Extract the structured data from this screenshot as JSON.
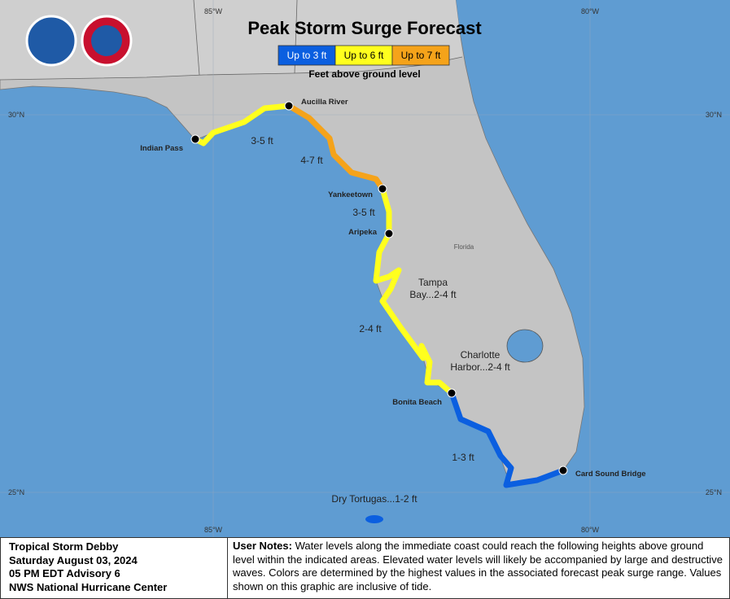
{
  "header": {
    "title": "Peak Storm Surge Forecast",
    "legend": [
      {
        "label": "Up to 3 ft",
        "color": "#0b5fe0"
      },
      {
        "label": "Up to 6 ft",
        "color": "#ffff1e"
      },
      {
        "label": "Up to 7 ft",
        "color": "#f5a31a"
      }
    ],
    "legend_caption": "Feet above ground level"
  },
  "map": {
    "longitudes": [
      "85°W",
      "80°W"
    ],
    "latitudes": [
      "30°N",
      "25°N"
    ],
    "state_label": "Florida",
    "locations": [
      "Aucilla River",
      "Indian Pass",
      "Yankeetown",
      "Aripeka",
      "Bonita Beach",
      "Card Sound Bridge"
    ],
    "surge_labels": [
      [
        "3-5 ft"
      ],
      [
        "4-7 ft"
      ],
      [
        "3-5 ft"
      ],
      [
        "Tampa",
        "Bay...2-4 ft"
      ],
      [
        "2-4 ft"
      ],
      [
        "Charlotte",
        "Harbor...2-4 ft"
      ],
      [
        "1-3 ft"
      ],
      [
        "Dry Tortugas...1-2 ft"
      ]
    ]
  },
  "footer": {
    "storm_lines": [
      "Tropical Storm Debby",
      "Saturday August 03, 2024",
      "05 PM EDT Advisory 6",
      "NWS National Hurricane Center"
    ],
    "notes_label": "User Notes:",
    "notes_text": "Water levels along the immediate coast could reach the following heights above ground level within the indicated areas. Elevated water levels will likely be accompanied by large and destructive waves. Colors are determined by the highest values in the associated forecast peak surge range. Values shown on this graphic are inclusive of tide."
  }
}
